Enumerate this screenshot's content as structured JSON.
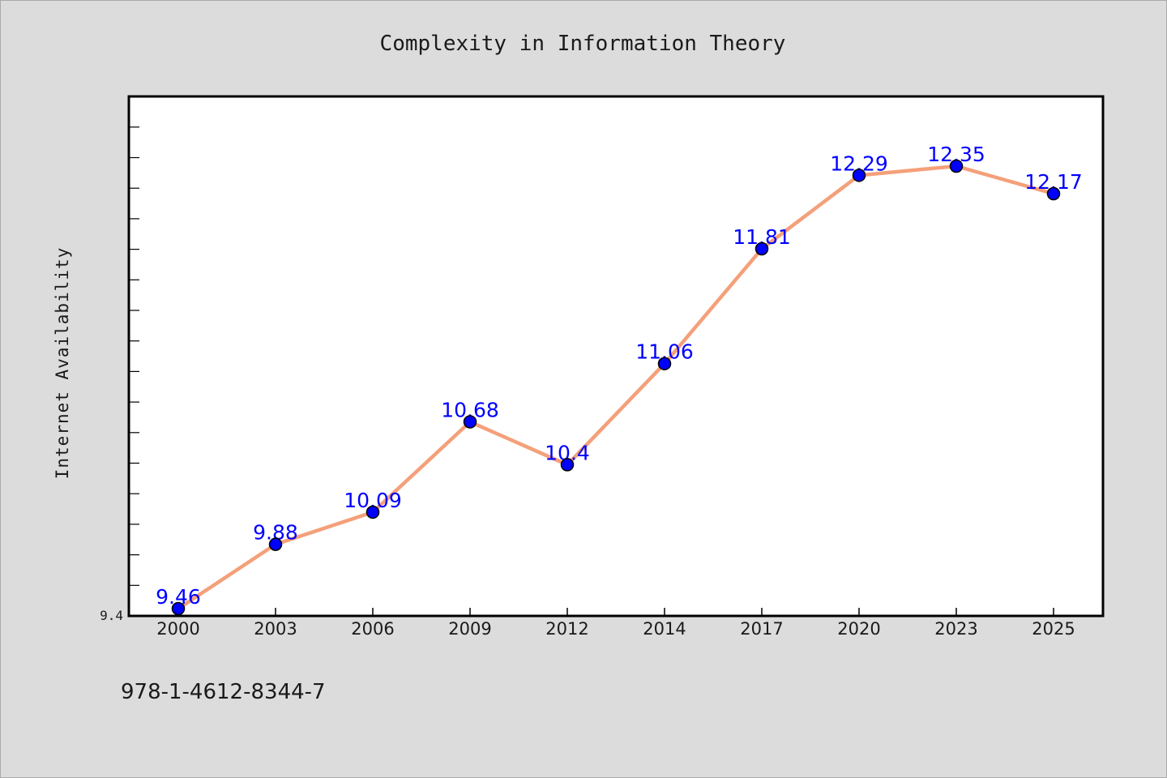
{
  "chart_data": {
    "type": "line",
    "title": "Complexity in Information Theory",
    "xlabel": "",
    "ylabel": "Internet Availability",
    "categories": [
      "2000",
      "2003",
      "2006",
      "2009",
      "2012",
      "2014",
      "2017",
      "2020",
      "2023",
      "2025"
    ],
    "series": [
      {
        "values": [
          9.46,
          9.88,
          10.09,
          10.68,
          10.4,
          11.06,
          11.81,
          12.29,
          12.35,
          12.17
        ]
      }
    ],
    "data_labels": [
      "9.46",
      "9.88",
      "10.09",
      "10.68",
      "10.4",
      "11.06",
      "11.81",
      "12.29",
      "12.35",
      "12.17"
    ],
    "yticks": [
      {
        "value": 9.4,
        "label": "9.4"
      }
    ],
    "ylim": [
      9.4,
      12.8
    ],
    "grid": false,
    "colors": {
      "line": "#f4a07a",
      "marker": "#0000ff",
      "marker_edge": "#000000",
      "label": "#0000ff",
      "background": "#dcdcdc",
      "plot_background": "#ffffff"
    }
  },
  "footer": {
    "isbn": "978-1-4612-8344-7"
  }
}
